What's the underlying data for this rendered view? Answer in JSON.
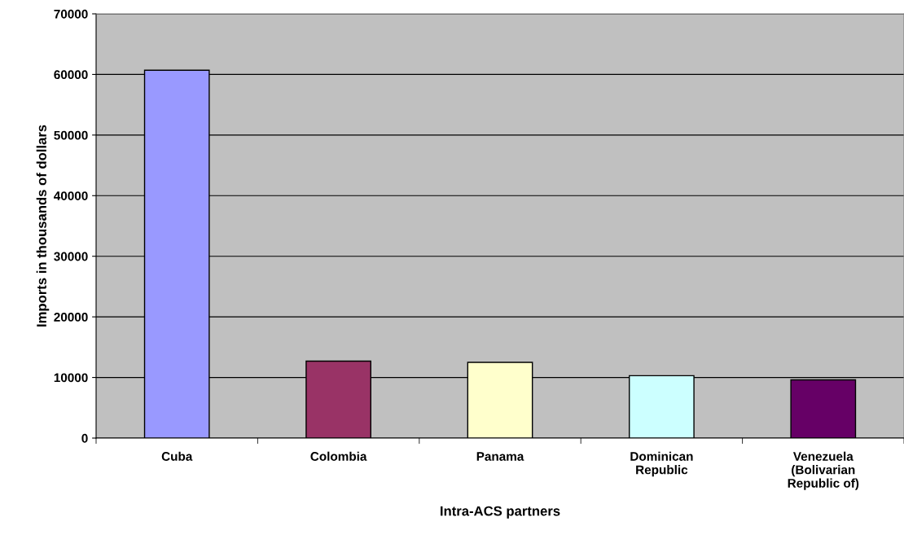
{
  "chart_data": {
    "type": "bar",
    "xlabel": "Intra-ACS partners",
    "ylabel": "Imports in thousands of dollars",
    "categories": [
      "Cuba",
      "Colombia",
      "Panama",
      "Dominican\nRepublic",
      "Venezuela\n(Bolivarian\nRepublic of)"
    ],
    "values": [
      60700,
      12700,
      12500,
      10300,
      9600
    ],
    "colors": [
      "#9999ff",
      "#993366",
      "#ffffcc",
      "#ccffff",
      "#660066"
    ],
    "ylim": [
      0,
      70000
    ],
    "yticks": [
      0,
      10000,
      20000,
      30000,
      40000,
      50000,
      60000,
      70000
    ],
    "grid": "y"
  }
}
